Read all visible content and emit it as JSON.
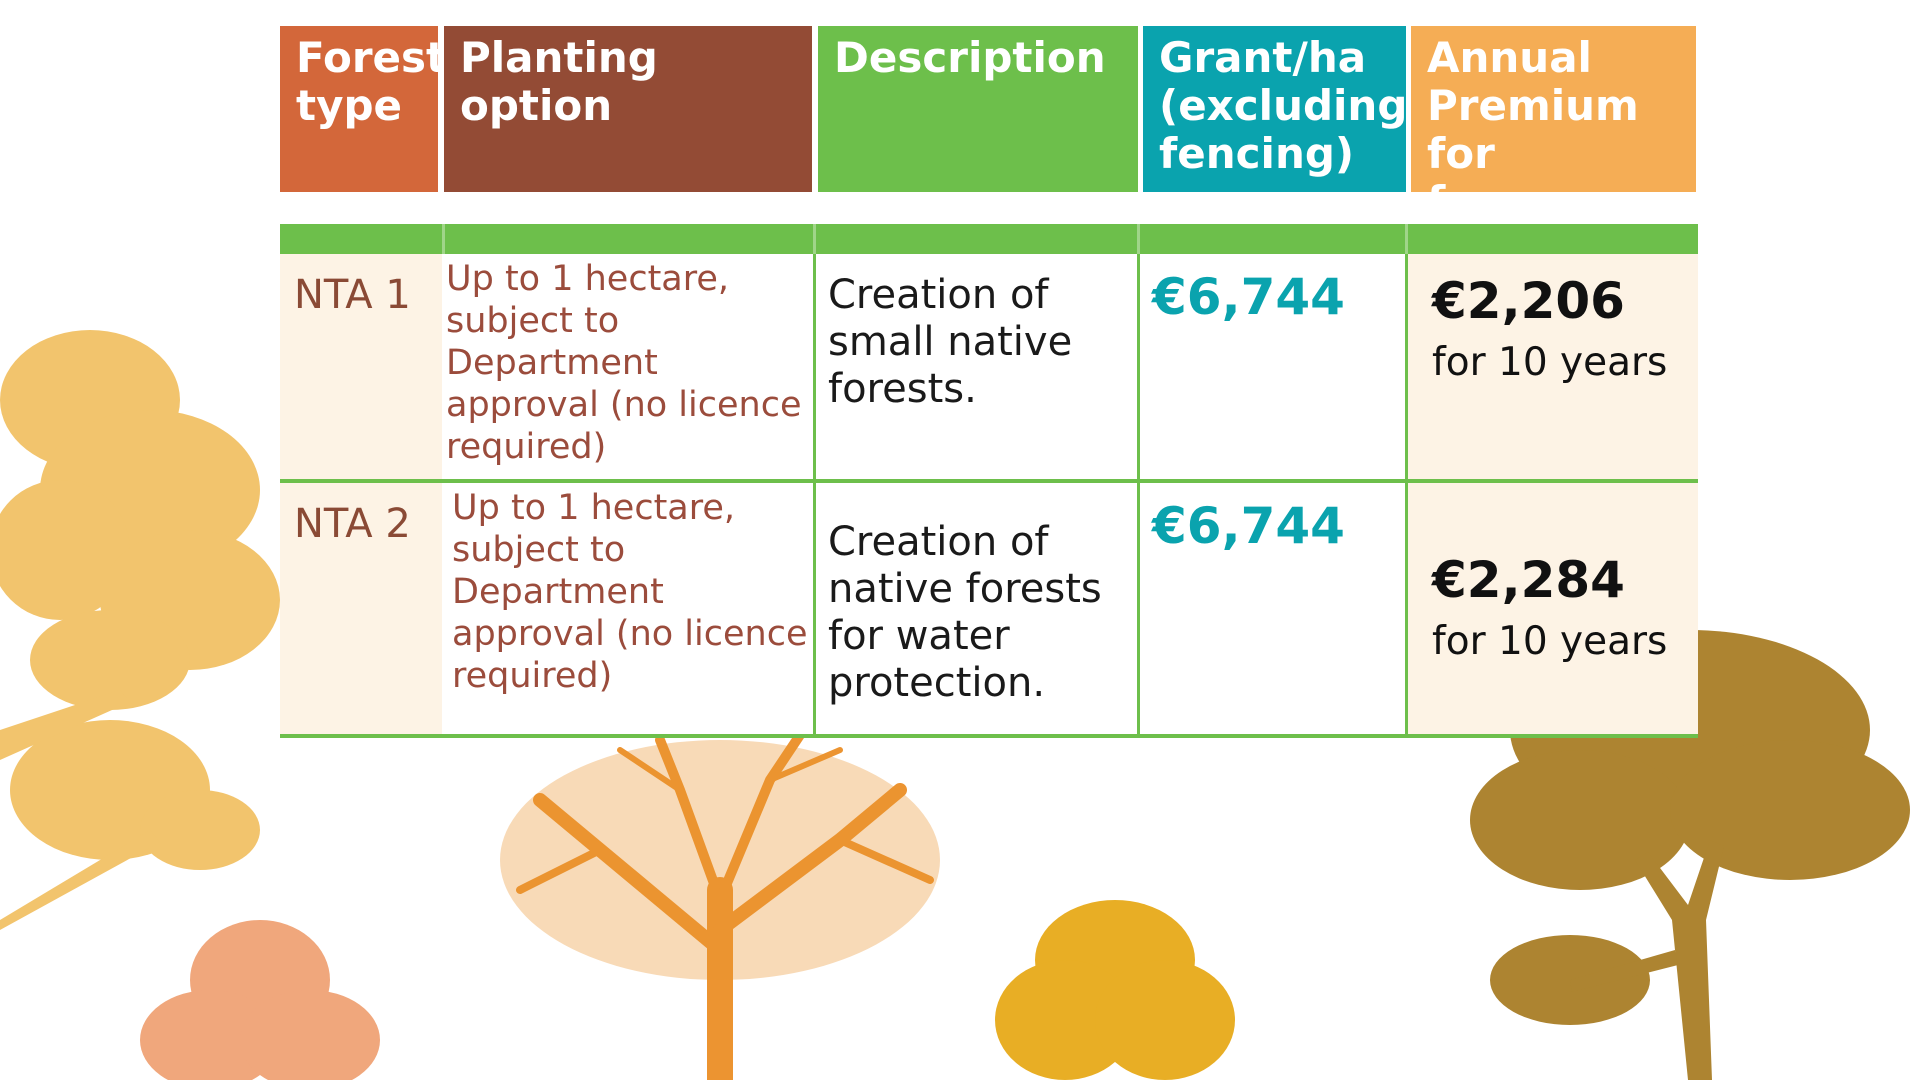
{
  "colors": {
    "forest_type_header": "#d3673a",
    "planting_option_header": "#934b35",
    "description_header": "#6dbf4b",
    "grant_header": "#0aa3ae",
    "premium_header": "#f5ad55"
  },
  "headers": {
    "forest_type": "Forest type",
    "planting_option": "Planting option",
    "description": "Description",
    "grant": "Grant/ha (excluding fencing)",
    "premium": "Annual Premium for farmers (ha)"
  },
  "rows": [
    {
      "forest_type": "NTA 1",
      "planting_option": "Up to 1 hectare, subject to Department approval (no licence required)",
      "description": "Creation of small native forests.",
      "grant": "€6,744",
      "premium_amount": "€2,206",
      "premium_duration": "for 10 years"
    },
    {
      "forest_type": "NTA 2",
      "planting_option": "Up to 1 hectare, subject to Department approval (no licence required)",
      "description": "Creation of native forests for water protection.",
      "grant": "€6,744",
      "premium_amount": "€2,284",
      "premium_duration": "for 10 years"
    }
  ],
  "decorations": [
    "tree-silhouette-yellow",
    "tree-silhouette-salmon",
    "tree-silhouette-orange",
    "tree-silhouette-gold",
    "tree-silhouette-brown"
  ]
}
